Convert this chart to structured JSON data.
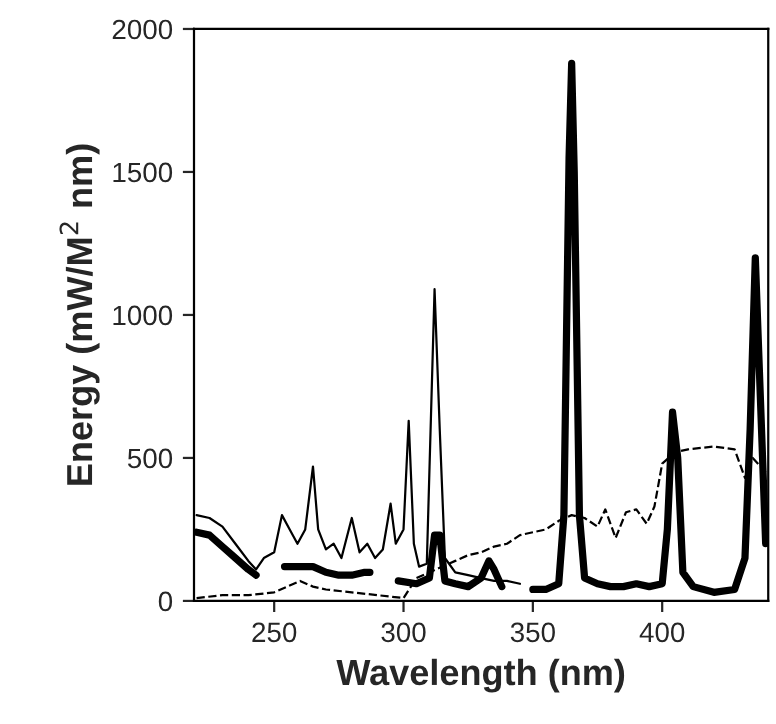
{
  "chart_data": {
    "type": "line",
    "xlabel": "Wavelength (nm)",
    "ylabel": "Energy (mW/M$^{2}$ nm)",
    "xlim": [
      219,
      441
    ],
    "ylim": [
      0,
      2000
    ],
    "xticks": [
      250,
      300,
      350,
      400
    ],
    "yticks": [
      0,
      500,
      1000,
      1500,
      2000
    ],
    "grid": false,
    "legend": false,
    "marker": "none",
    "series": [
      {
        "color": "#000000",
        "line_style": "solid",
        "x": [
          220,
          225,
          230,
          235,
          240,
          243,
          246,
          250,
          253,
          256,
          259,
          262,
          265,
          267,
          270,
          273,
          276,
          280,
          283,
          286,
          289,
          292,
          295,
          297,
          300,
          302,
          304,
          306,
          309,
          312,
          314,
          316,
          320,
          325,
          330,
          335,
          340,
          345
        ],
        "values": [
          300,
          290,
          260,
          200,
          140,
          110,
          150,
          170,
          300,
          250,
          200,
          250,
          470,
          250,
          180,
          200,
          150,
          290,
          170,
          200,
          150,
          180,
          340,
          200,
          250,
          630,
          200,
          120,
          130,
          1090,
          600,
          150,
          100,
          90,
          80,
          70,
          70,
          60
        ]
      },
      {
        "color": "#000000",
        "line_style": "solid",
        "x": [
          220,
          225,
          230,
          235,
          240,
          243,
          248,
          254,
          260,
          265,
          270,
          275,
          280,
          285,
          287,
          292,
          298,
          305,
          310,
          312,
          314,
          316,
          320,
          325,
          330,
          333,
          335,
          338,
          344,
          350,
          355,
          360,
          362,
          364,
          365,
          366,
          368,
          370,
          375,
          380,
          385,
          390,
          395,
          400,
          402,
          404,
          406,
          408,
          412,
          420,
          428,
          432,
          434,
          436,
          438,
          440
        ],
        "values": [
          240,
          230,
          190,
          150,
          110,
          90,
          null,
          120,
          120,
          120,
          100,
          90,
          90,
          100,
          100,
          null,
          70,
          60,
          80,
          230,
          230,
          70,
          60,
          50,
          80,
          140,
          110,
          50,
          null,
          40,
          40,
          60,
          300,
          1550,
          1880,
          1500,
          300,
          80,
          60,
          50,
          50,
          60,
          50,
          60,
          250,
          660,
          500,
          100,
          50,
          30,
          40,
          150,
          600,
          1200,
          700,
          200
        ]
      },
      {
        "color": "#000000",
        "line_style": "dashed",
        "x": [
          220,
          230,
          240,
          250,
          255,
          260,
          265,
          270,
          280,
          290,
          300,
          305,
          310,
          315,
          320,
          325,
          330,
          335,
          340,
          345,
          350,
          355,
          360,
          365,
          370,
          375,
          378,
          382,
          386,
          390,
          394,
          397,
          400,
          405,
          410,
          420,
          428,
          432,
          435,
          440
        ],
        "values": [
          10,
          20,
          20,
          30,
          50,
          70,
          50,
          40,
          30,
          20,
          10,
          80,
          100,
          120,
          140,
          160,
          170,
          190,
          200,
          230,
          240,
          250,
          280,
          300,
          290,
          260,
          320,
          220,
          310,
          320,
          270,
          330,
          480,
          520,
          530,
          540,
          530,
          430,
          500,
          450
        ]
      }
    ]
  }
}
